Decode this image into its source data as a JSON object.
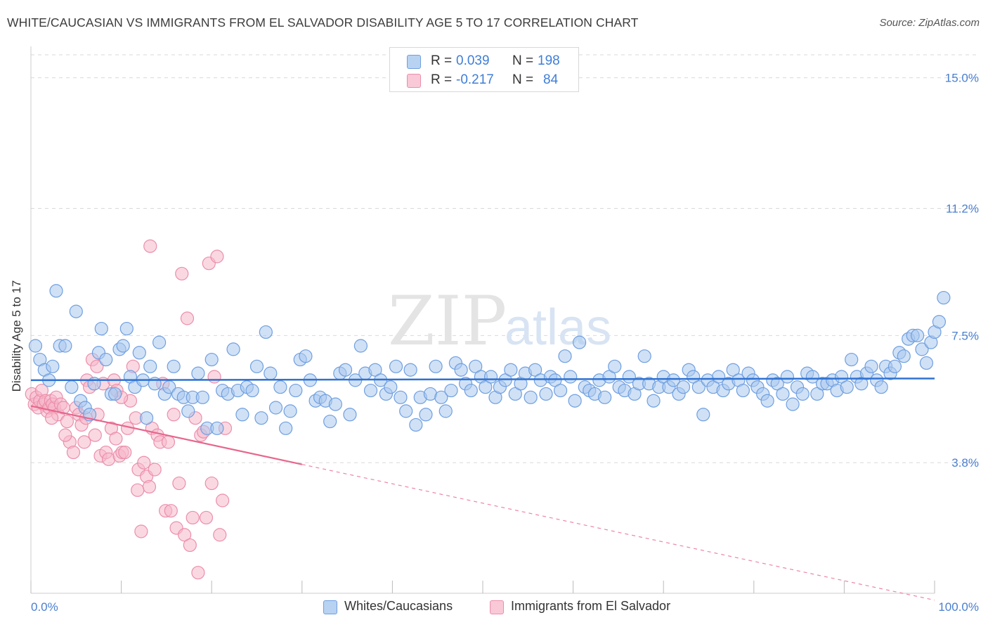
{
  "title": "WHITE/CAUCASIAN VS IMMIGRANTS FROM EL SALVADOR DISABILITY AGE 5 TO 17 CORRELATION CHART",
  "source": "Source: ZipAtlas.com",
  "watermark": {
    "zip": "ZIP",
    "atlas": "atlas"
  },
  "legend": {
    "r_label": "R =",
    "n_label": "N =",
    "series1": {
      "r": "0.039",
      "n": "198"
    },
    "series2": {
      "r": "-0.217",
      "n": "84"
    }
  },
  "bottom_legend": {
    "series1": "Whites/Caucasians",
    "series2": "Immigrants from El Salvador"
  },
  "colors": {
    "blue_fill": "#a9c8ef",
    "blue_stroke": "#6f9fe0",
    "blue_line": "#2f72d1",
    "pink_fill": "#f6b8ca",
    "pink_stroke": "#ec8eab",
    "pink_line": "#e7668d",
    "tick_text": "#4a7fd0",
    "grid": "#d9d9d9"
  },
  "chart_data": {
    "type": "scatter",
    "title": "WHITE/CAUCASIAN VS IMMIGRANTS FROM EL SALVADOR DISABILITY AGE 5 TO 17 CORRELATION CHART",
    "xlabel": "",
    "ylabel": "Disability Age 5 to 17",
    "xlim": [
      0,
      100
    ],
    "ylim": [
      0,
      15.75
    ],
    "x_tick_labels": [
      "0.0%",
      "100.0%"
    ],
    "y_ticks": [
      3.8,
      7.5,
      11.2,
      15.0
    ],
    "y_tick_labels": [
      "3.8%",
      "7.5%",
      "11.2%",
      "15.0%"
    ],
    "series": [
      {
        "name": "Whites/Caucasians",
        "r": 0.039,
        "n": 198,
        "trend": {
          "x": [
            0,
            100
          ],
          "y": [
            6.2,
            6.25
          ]
        },
        "points": [
          [
            0.5,
            7.2
          ],
          [
            1.0,
            6.8
          ],
          [
            1.5,
            6.5
          ],
          [
            2.0,
            6.2
          ],
          [
            2.4,
            6.6
          ],
          [
            2.8,
            8.8
          ],
          [
            3.2,
            7.2
          ],
          [
            3.8,
            7.2
          ],
          [
            4.5,
            6.0
          ],
          [
            5.0,
            8.2
          ],
          [
            5.5,
            5.6
          ],
          [
            6.0,
            5.4
          ],
          [
            6.5,
            5.2
          ],
          [
            7.0,
            6.1
          ],
          [
            7.5,
            7.0
          ],
          [
            7.8,
            7.7
          ],
          [
            8.3,
            6.8
          ],
          [
            8.9,
            5.8
          ],
          [
            9.3,
            5.8
          ],
          [
            9.8,
            7.1
          ],
          [
            10.2,
            7.2
          ],
          [
            10.6,
            7.7
          ],
          [
            11.0,
            6.3
          ],
          [
            11.5,
            6.0
          ],
          [
            12.0,
            7.0
          ],
          [
            12.4,
            6.2
          ],
          [
            12.8,
            5.1
          ],
          [
            13.2,
            6.6
          ],
          [
            13.7,
            6.1
          ],
          [
            14.2,
            7.3
          ],
          [
            14.8,
            5.8
          ],
          [
            15.3,
            6.0
          ],
          [
            15.8,
            6.6
          ],
          [
            16.3,
            5.8
          ],
          [
            16.9,
            5.7
          ],
          [
            17.4,
            5.3
          ],
          [
            17.9,
            5.7
          ],
          [
            18.5,
            6.4
          ],
          [
            19.0,
            5.7
          ],
          [
            19.5,
            4.8
          ],
          [
            20.0,
            6.8
          ],
          [
            20.6,
            4.8
          ],
          [
            21.2,
            5.9
          ],
          [
            21.8,
            5.8
          ],
          [
            22.4,
            7.1
          ],
          [
            22.9,
            5.9
          ],
          [
            23.4,
            5.2
          ],
          [
            23.9,
            6.0
          ],
          [
            24.5,
            5.9
          ],
          [
            25.0,
            6.6
          ],
          [
            25.5,
            5.1
          ],
          [
            26.0,
            7.6
          ],
          [
            26.5,
            6.4
          ],
          [
            27.1,
            5.4
          ],
          [
            27.6,
            6.0
          ],
          [
            28.2,
            4.8
          ],
          [
            28.7,
            5.3
          ],
          [
            29.3,
            5.9
          ],
          [
            29.8,
            6.8
          ],
          [
            30.4,
            6.9
          ],
          [
            30.9,
            6.2
          ],
          [
            31.5,
            5.6
          ],
          [
            32.0,
            5.7
          ],
          [
            32.6,
            5.6
          ],
          [
            33.1,
            5.0
          ],
          [
            33.7,
            5.5
          ],
          [
            34.2,
            6.4
          ],
          [
            34.8,
            6.5
          ],
          [
            35.3,
            5.2
          ],
          [
            35.9,
            6.2
          ],
          [
            36.5,
            7.2
          ],
          [
            37.0,
            6.4
          ],
          [
            37.6,
            5.9
          ],
          [
            38.1,
            6.5
          ],
          [
            38.7,
            6.2
          ],
          [
            39.3,
            5.8
          ],
          [
            39.8,
            6.0
          ],
          [
            40.4,
            6.6
          ],
          [
            40.9,
            5.7
          ],
          [
            41.5,
            5.3
          ],
          [
            42.0,
            6.5
          ],
          [
            42.6,
            4.9
          ],
          [
            43.1,
            5.7
          ],
          [
            43.7,
            5.2
          ],
          [
            44.2,
            5.8
          ],
          [
            44.8,
            6.6
          ],
          [
            45.4,
            5.7
          ],
          [
            45.9,
            5.3
          ],
          [
            46.5,
            5.9
          ],
          [
            47.0,
            6.7
          ],
          [
            47.6,
            6.5
          ],
          [
            48.1,
            6.1
          ],
          [
            48.7,
            5.9
          ],
          [
            49.2,
            6.6
          ],
          [
            49.8,
            6.3
          ],
          [
            50.3,
            6.0
          ],
          [
            50.9,
            6.3
          ],
          [
            51.4,
            5.7
          ],
          [
            51.9,
            6.0
          ],
          [
            52.5,
            6.2
          ],
          [
            53.1,
            6.5
          ],
          [
            53.6,
            5.8
          ],
          [
            54.2,
            6.1
          ],
          [
            54.7,
            6.4
          ],
          [
            55.3,
            5.7
          ],
          [
            55.8,
            6.5
          ],
          [
            56.4,
            6.2
          ],
          [
            57.0,
            5.8
          ],
          [
            57.5,
            6.3
          ],
          [
            58.0,
            6.2
          ],
          [
            58.6,
            5.9
          ],
          [
            59.1,
            6.9
          ],
          [
            59.7,
            6.3
          ],
          [
            60.2,
            5.6
          ],
          [
            60.7,
            7.3
          ],
          [
            61.3,
            6.0
          ],
          [
            61.8,
            5.9
          ],
          [
            62.4,
            5.8
          ],
          [
            62.9,
            6.2
          ],
          [
            63.5,
            5.7
          ],
          [
            64.0,
            6.3
          ],
          [
            64.6,
            6.6
          ],
          [
            65.1,
            6.0
          ],
          [
            65.7,
            5.9
          ],
          [
            66.2,
            6.3
          ],
          [
            66.8,
            5.8
          ],
          [
            67.3,
            6.1
          ],
          [
            67.9,
            6.9
          ],
          [
            68.4,
            6.1
          ],
          [
            68.9,
            5.6
          ],
          [
            69.5,
            6.0
          ],
          [
            70.0,
            6.3
          ],
          [
            70.6,
            6.0
          ],
          [
            71.1,
            6.2
          ],
          [
            71.7,
            5.8
          ],
          [
            72.2,
            6.0
          ],
          [
            72.8,
            6.5
          ],
          [
            73.3,
            6.3
          ],
          [
            73.9,
            6.0
          ],
          [
            74.4,
            5.2
          ],
          [
            74.9,
            6.2
          ],
          [
            75.5,
            6.0
          ],
          [
            76.1,
            6.3
          ],
          [
            76.6,
            5.9
          ],
          [
            77.2,
            6.1
          ],
          [
            77.7,
            6.5
          ],
          [
            78.3,
            6.2
          ],
          [
            78.8,
            5.9
          ],
          [
            79.4,
            6.4
          ],
          [
            79.9,
            6.2
          ],
          [
            80.4,
            6.0
          ],
          [
            81.0,
            5.8
          ],
          [
            81.5,
            5.6
          ],
          [
            82.1,
            6.2
          ],
          [
            82.6,
            6.1
          ],
          [
            83.2,
            5.8
          ],
          [
            83.7,
            6.3
          ],
          [
            84.3,
            5.5
          ],
          [
            84.8,
            6.0
          ],
          [
            85.4,
            5.8
          ],
          [
            85.9,
            6.4
          ],
          [
            86.5,
            6.3
          ],
          [
            87.0,
            5.8
          ],
          [
            87.6,
            6.1
          ],
          [
            88.1,
            6.1
          ],
          [
            88.7,
            6.2
          ],
          [
            89.2,
            5.9
          ],
          [
            89.7,
            6.3
          ],
          [
            90.3,
            6.0
          ],
          [
            90.8,
            6.8
          ],
          [
            91.4,
            6.3
          ],
          [
            91.9,
            6.1
          ],
          [
            92.5,
            6.4
          ],
          [
            93.0,
            6.6
          ],
          [
            93.6,
            6.2
          ],
          [
            94.1,
            6.0
          ],
          [
            94.6,
            6.6
          ],
          [
            95.1,
            6.4
          ],
          [
            95.6,
            6.6
          ],
          [
            96.1,
            7.0
          ],
          [
            96.6,
            6.9
          ],
          [
            97.1,
            7.4
          ],
          [
            97.6,
            7.5
          ],
          [
            98.1,
            7.5
          ],
          [
            98.6,
            7.1
          ],
          [
            99.1,
            6.7
          ],
          [
            99.6,
            7.3
          ],
          [
            100.0,
            7.6
          ],
          [
            100.5,
            7.9
          ],
          [
            101.0,
            8.6
          ]
        ]
      },
      {
        "name": "Immigrants from El Salvador",
        "r": -0.217,
        "n": 84,
        "trend_solid": {
          "x": [
            0,
            30
          ],
          "y": [
            5.45,
            3.75
          ]
        },
        "trend_dashed": {
          "x": [
            30,
            100
          ],
          "y": [
            3.75,
            -0.2
          ]
        },
        "points": [
          [
            0.1,
            5.8
          ],
          [
            0.4,
            5.5
          ],
          [
            0.6,
            5.7
          ],
          [
            0.8,
            5.4
          ],
          [
            1.0,
            5.6
          ],
          [
            1.2,
            5.9
          ],
          [
            1.4,
            5.5
          ],
          [
            1.6,
            5.6
          ],
          [
            1.8,
            5.3
          ],
          [
            2.0,
            5.4
          ],
          [
            2.2,
            5.6
          ],
          [
            2.4,
            5.5
          ],
          [
            2.6,
            5.4
          ],
          [
            2.8,
            5.7
          ],
          [
            3.0,
            5.2
          ],
          [
            3.3,
            5.5
          ],
          [
            3.6,
            5.4
          ],
          [
            4.0,
            5.0
          ],
          [
            4.3,
            4.4
          ],
          [
            4.7,
            4.1
          ],
          [
            5.0,
            5.4
          ],
          [
            5.3,
            5.2
          ],
          [
            5.6,
            4.9
          ],
          [
            5.9,
            4.4
          ],
          [
            6.2,
            6.2
          ],
          [
            6.5,
            6.0
          ],
          [
            6.8,
            6.8
          ],
          [
            7.1,
            4.6
          ],
          [
            7.4,
            5.2
          ],
          [
            7.7,
            4.0
          ],
          [
            8.0,
            6.1
          ],
          [
            8.3,
            4.1
          ],
          [
            8.6,
            3.9
          ],
          [
            8.9,
            4.8
          ],
          [
            9.2,
            6.2
          ],
          [
            9.5,
            5.9
          ],
          [
            9.8,
            4.0
          ],
          [
            10.1,
            4.1
          ],
          [
            10.4,
            4.1
          ],
          [
            10.7,
            4.8
          ],
          [
            11.0,
            5.6
          ],
          [
            11.3,
            6.6
          ],
          [
            11.6,
            5.1
          ],
          [
            11.9,
            3.6
          ],
          [
            12.2,
            1.8
          ],
          [
            12.5,
            3.8
          ],
          [
            12.8,
            3.4
          ],
          [
            13.1,
            3.1
          ],
          [
            13.4,
            4.8
          ],
          [
            13.7,
            3.6
          ],
          [
            14.0,
            4.6
          ],
          [
            14.3,
            4.4
          ],
          [
            14.6,
            6.1
          ],
          [
            14.9,
            2.4
          ],
          [
            15.2,
            4.4
          ],
          [
            15.5,
            2.4
          ],
          [
            15.8,
            5.2
          ],
          [
            16.1,
            1.9
          ],
          [
            16.4,
            3.2
          ],
          [
            16.7,
            9.3
          ],
          [
            17.0,
            1.7
          ],
          [
            17.3,
            8.0
          ],
          [
            17.6,
            1.4
          ],
          [
            17.9,
            2.2
          ],
          [
            18.2,
            5.1
          ],
          [
            18.5,
            0.6
          ],
          [
            18.8,
            4.6
          ],
          [
            19.1,
            4.7
          ],
          [
            19.4,
            2.2
          ],
          [
            19.7,
            9.6
          ],
          [
            20.0,
            3.2
          ],
          [
            20.3,
            6.3
          ],
          [
            20.6,
            9.8
          ],
          [
            20.9,
            1.7
          ],
          [
            21.2,
            2.7
          ],
          [
            21.5,
            4.8
          ],
          [
            13.2,
            10.1
          ],
          [
            9.4,
            4.5
          ],
          [
            7.3,
            6.6
          ],
          [
            10.0,
            5.7
          ],
          [
            11.8,
            3.0
          ],
          [
            6.1,
            5.1
          ],
          [
            3.8,
            4.6
          ],
          [
            2.3,
            5.1
          ]
        ]
      }
    ]
  }
}
